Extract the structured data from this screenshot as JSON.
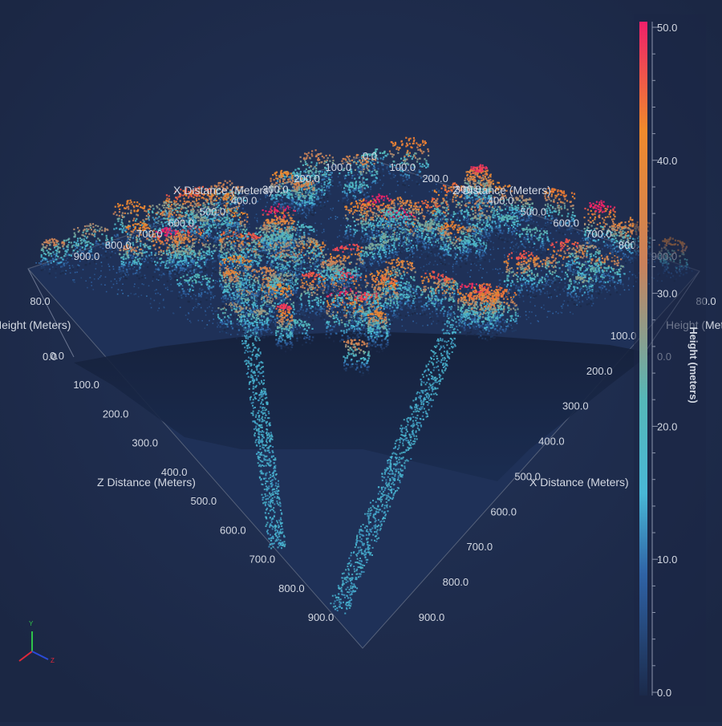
{
  "chart_data": {
    "type": "scatter",
    "subtype": "3d-point-cloud (LiDAR)",
    "x_axis": {
      "label": "X Distance (Meters)",
      "range": [
        0,
        900
      ],
      "ticks": [
        "0.0",
        "100.0",
        "200.0",
        "300.0",
        "400.0",
        "500.0",
        "600.0",
        "700.0",
        "800.0",
        "900.0"
      ]
    },
    "z_axis": {
      "label": "Z Distance (Meters)",
      "range": [
        0,
        900
      ],
      "ticks": [
        "0.0",
        "100.0",
        "200.0",
        "300.0",
        "400.0",
        "500.0",
        "600.0",
        "700.0",
        "800.0",
        "900.0"
      ]
    },
    "y_axis": {
      "label": "Height (Meters)",
      "range": [
        0,
        80
      ],
      "ticks": [
        "0.0",
        "80.0"
      ]
    },
    "colorbar": {
      "label": "Height (meters)",
      "range": [
        0,
        50
      ],
      "ticks": [
        "0.0",
        "10.0",
        "20.0",
        "30.0",
        "40.0",
        "50.0"
      ],
      "stops": [
        {
          "value": 0,
          "color": "#1b2a4a"
        },
        {
          "value": 9,
          "color": "#2f63a6"
        },
        {
          "value": 15,
          "color": "#49b8d6"
        },
        {
          "value": 22,
          "color": "#55b7b8"
        },
        {
          "value": 32,
          "color": "#c9815b"
        },
        {
          "value": 42,
          "color": "#f08a2c"
        },
        {
          "value": 50,
          "color": "#f0206a"
        }
      ]
    },
    "orientation_gizmo": {
      "labels": [
        "Y",
        "Z"
      ]
    }
  }
}
